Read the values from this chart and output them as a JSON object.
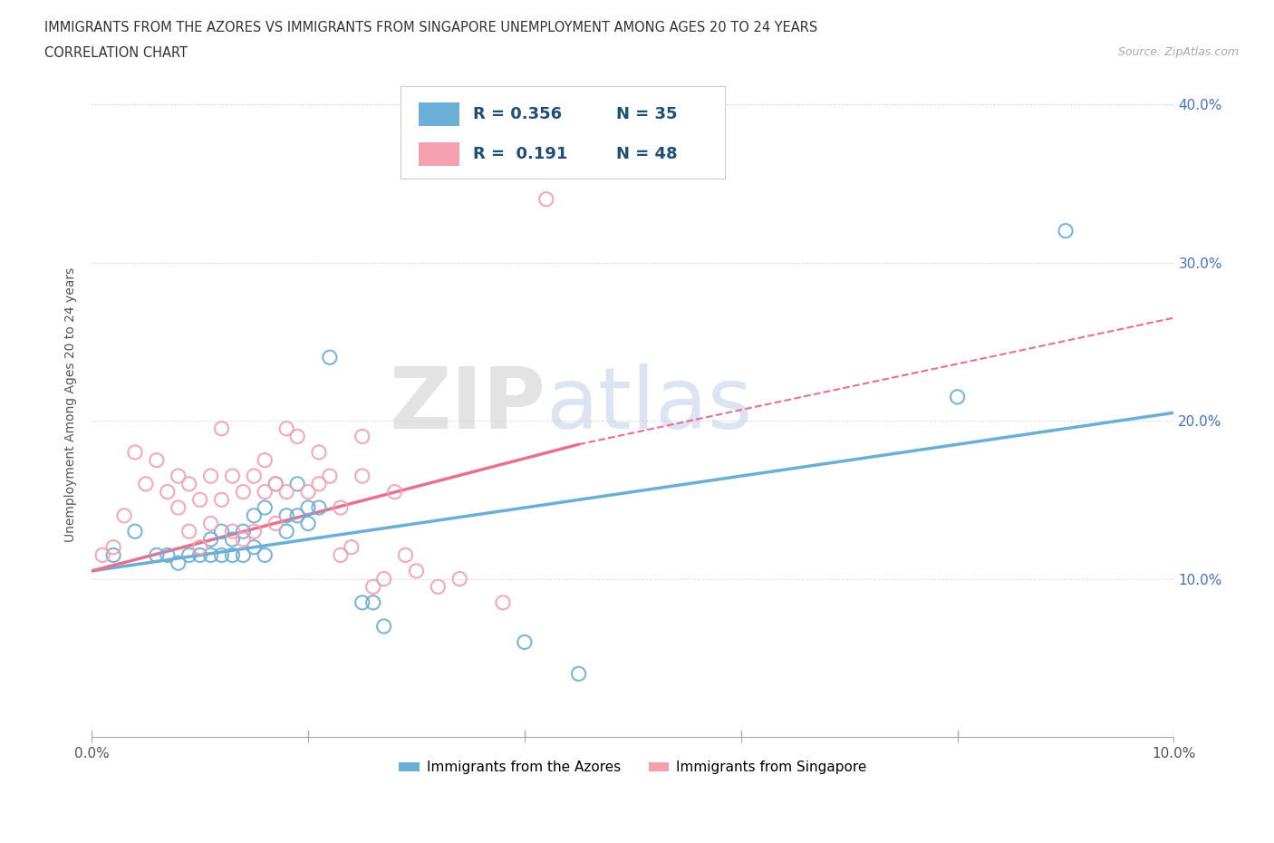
{
  "title_line1": "IMMIGRANTS FROM THE AZORES VS IMMIGRANTS FROM SINGAPORE UNEMPLOYMENT AMONG AGES 20 TO 24 YEARS",
  "title_line2": "CORRELATION CHART",
  "source_text": "Source: ZipAtlas.com",
  "ylabel": "Unemployment Among Ages 20 to 24 years",
  "xlim": [
    0.0,
    0.1
  ],
  "ylim": [
    0.0,
    0.42
  ],
  "xticks": [
    0.0,
    0.02,
    0.04,
    0.06,
    0.08,
    0.1
  ],
  "yticks": [
    0.0,
    0.1,
    0.2,
    0.3,
    0.4
  ],
  "xtick_labels": [
    "0.0%",
    "",
    "",
    "",
    "",
    "10.0%"
  ],
  "ytick_labels": [
    "",
    "10.0%",
    "20.0%",
    "30.0%",
    "40.0%"
  ],
  "color_azores": "#6baed6",
  "color_singapore": "#f4a0b0",
  "color_ytick": "#4472c4",
  "legend_r_azores": "R = 0.356",
  "legend_n_azores": "N = 35",
  "legend_r_singapore": "R =  0.191",
  "legend_n_singapore": "N = 48",
  "watermark_zip": "ZIP",
  "watermark_atlas": "atlas",
  "azores_scatter_x": [
    0.002,
    0.004,
    0.006,
    0.007,
    0.008,
    0.009,
    0.01,
    0.011,
    0.011,
    0.012,
    0.012,
    0.013,
    0.013,
    0.014,
    0.014,
    0.015,
    0.015,
    0.016,
    0.016,
    0.017,
    0.018,
    0.018,
    0.019,
    0.019,
    0.02,
    0.02,
    0.021,
    0.022,
    0.025,
    0.026,
    0.027,
    0.04,
    0.045,
    0.08,
    0.09
  ],
  "azores_scatter_y": [
    0.115,
    0.13,
    0.115,
    0.115,
    0.11,
    0.115,
    0.115,
    0.125,
    0.115,
    0.13,
    0.115,
    0.125,
    0.115,
    0.13,
    0.115,
    0.14,
    0.12,
    0.145,
    0.115,
    0.16,
    0.14,
    0.13,
    0.16,
    0.14,
    0.145,
    0.135,
    0.145,
    0.24,
    0.085,
    0.085,
    0.07,
    0.06,
    0.04,
    0.215,
    0.32
  ],
  "singapore_scatter_x": [
    0.001,
    0.002,
    0.003,
    0.004,
    0.005,
    0.006,
    0.007,
    0.008,
    0.008,
    0.009,
    0.009,
    0.01,
    0.01,
    0.011,
    0.011,
    0.012,
    0.012,
    0.013,
    0.013,
    0.014,
    0.014,
    0.015,
    0.015,
    0.016,
    0.016,
    0.017,
    0.017,
    0.018,
    0.018,
    0.019,
    0.02,
    0.021,
    0.021,
    0.022,
    0.023,
    0.023,
    0.024,
    0.025,
    0.025,
    0.026,
    0.027,
    0.028,
    0.029,
    0.03,
    0.032,
    0.034,
    0.038,
    0.042
  ],
  "singapore_scatter_y": [
    0.115,
    0.12,
    0.14,
    0.18,
    0.16,
    0.175,
    0.155,
    0.145,
    0.165,
    0.13,
    0.16,
    0.12,
    0.15,
    0.135,
    0.165,
    0.15,
    0.195,
    0.13,
    0.165,
    0.125,
    0.155,
    0.165,
    0.13,
    0.175,
    0.155,
    0.16,
    0.135,
    0.155,
    0.195,
    0.19,
    0.155,
    0.18,
    0.16,
    0.165,
    0.115,
    0.145,
    0.12,
    0.165,
    0.19,
    0.095,
    0.1,
    0.155,
    0.115,
    0.105,
    0.095,
    0.1,
    0.085,
    0.34
  ],
  "azores_trend_x": [
    0.0,
    0.1
  ],
  "azores_trend_y": [
    0.105,
    0.205
  ],
  "singapore_trend_x": [
    0.0,
    0.045
  ],
  "singapore_trend_y": [
    0.105,
    0.185
  ]
}
